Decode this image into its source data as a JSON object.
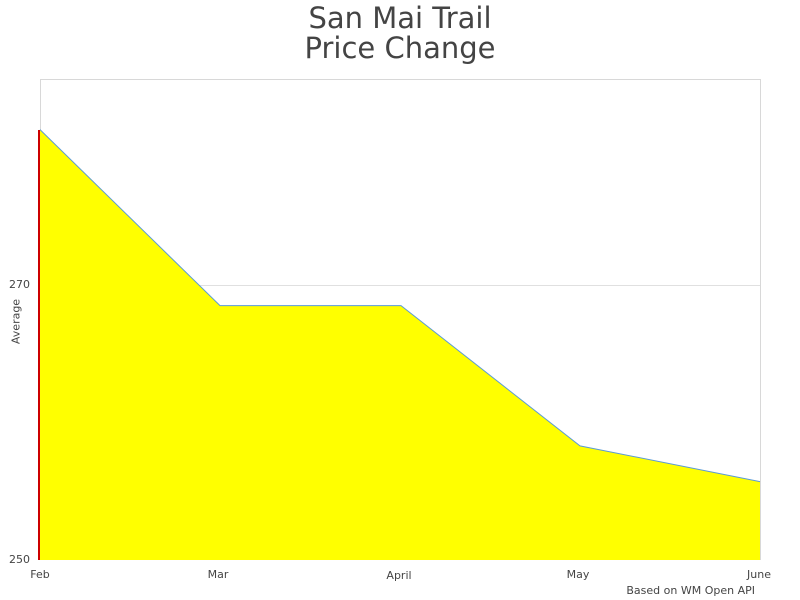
{
  "chart": {
    "title_line1": "San Mai Trail",
    "title_line2": "Price Change",
    "ylabel": "Average",
    "credit": "Based on WM Open API",
    "yticks": [
      "270",
      "250"
    ],
    "xticks": [
      "Feb",
      "Mar",
      "April",
      "May",
      "June"
    ],
    "colors": {
      "gradient_top": "#ff0000",
      "gradient_bottom": "#ffff00",
      "line": "#5b9bd5",
      "grid": "#e0e0e0",
      "border": "#d8d8d8"
    }
  },
  "chart_data": {
    "type": "area",
    "title": "San Mai Trail Price Change",
    "xlabel": "",
    "ylabel": "Average",
    "categories": [
      "Feb",
      "Mar",
      "April",
      "May",
      "June"
    ],
    "series": [
      {
        "name": "Average",
        "values": [
          281.3,
          268.5,
          268.5,
          258.3,
          255.7
        ]
      }
    ],
    "ylim": [
      250,
      285
    ],
    "yticks": [
      250,
      270
    ],
    "grid": true,
    "legend": "none",
    "fill": "vertical gradient red (top) to yellow (bottom)",
    "annotations": [
      "Based on WM Open API"
    ]
  }
}
